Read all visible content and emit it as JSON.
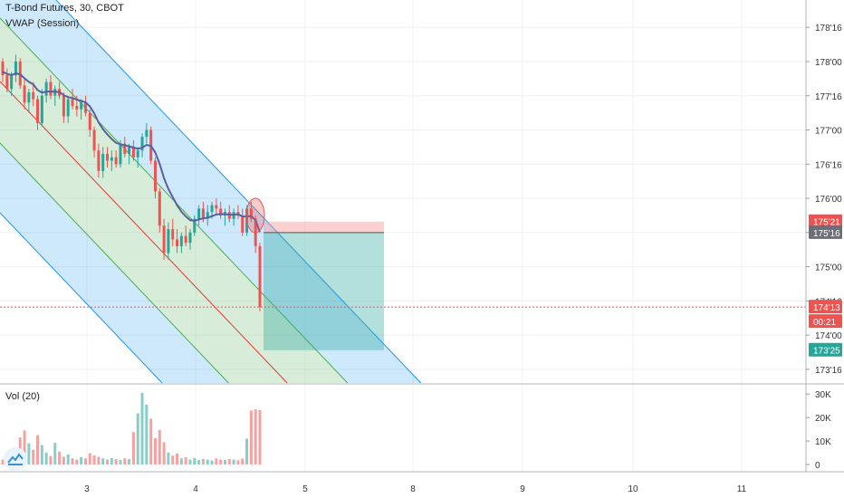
{
  "header": {
    "symbol_line": "T-Bond Futures, 30, CBOT",
    "indicator": "VWAP (Session)"
  },
  "volume_pane": {
    "label": "Vol (20)"
  },
  "colors": {
    "bull": "#26a69a",
    "bear": "#ef5350",
    "vwap": "#5b5f9c",
    "channel_outer": "#2196f3",
    "channel_inner": "#4caf50",
    "regression_line": "#e53935",
    "stop_zone": "#f4b6b6",
    "target_zone": "#8dd3c7",
    "last_price_line": "#ef5350"
  },
  "icons": [
    "tradingview-logo-icon"
  ],
  "chart_data": [
    {
      "type": "candlestick",
      "title": "T-Bond Futures, 30, CBOT",
      "xlabel": "",
      "ylabel": "",
      "x_ticks": [
        "3",
        "4",
        "5",
        "8",
        "9",
        "10",
        "11"
      ],
      "y_ticks": [
        "173'16",
        "174'00",
        "174'16",
        "175'00",
        "175'16",
        "176'00",
        "176'16",
        "177'00",
        "177'16",
        "178'00",
        "178'16"
      ],
      "ylim": [
        173.3,
        178.9
      ],
      "price_labels": [
        {
          "text": "175'21",
          "value": 175.66,
          "role": "stop-level"
        },
        {
          "text": "175'16",
          "value": 175.5,
          "role": "entry-level"
        },
        {
          "text": "174'13",
          "value": 174.41,
          "role": "last-price"
        },
        {
          "text": "00:21",
          "role": "bar-countdown"
        },
        {
          "text": "173'25",
          "value": 173.78,
          "role": "target-level"
        }
      ],
      "series": [
        {
          "name": "VWAP (Session)",
          "type": "line"
        }
      ],
      "candles": [
        [
          178.0,
          178.05,
          177.7,
          177.8
        ],
        [
          177.8,
          177.9,
          177.55,
          177.6
        ],
        [
          177.6,
          177.85,
          177.5,
          177.8
        ],
        [
          177.8,
          178.1,
          177.7,
          178.0
        ],
        [
          178.0,
          178.05,
          177.6,
          177.65
        ],
        [
          177.65,
          177.75,
          177.3,
          177.4
        ],
        [
          177.4,
          177.6,
          177.25,
          177.55
        ],
        [
          177.55,
          177.7,
          177.35,
          177.45
        ],
        [
          177.45,
          177.5,
          177.0,
          177.1
        ],
        [
          177.1,
          177.6,
          177.05,
          177.5
        ],
        [
          177.5,
          177.75,
          177.4,
          177.7
        ],
        [
          177.7,
          177.8,
          177.45,
          177.5
        ],
        [
          177.5,
          177.65,
          177.35,
          177.6
        ],
        [
          177.6,
          177.7,
          177.45,
          177.5
        ],
        [
          177.5,
          177.55,
          177.1,
          177.2
        ],
        [
          177.2,
          177.5,
          177.1,
          177.45
        ],
        [
          177.45,
          177.6,
          177.3,
          177.35
        ],
        [
          177.35,
          177.5,
          177.2,
          177.3
        ],
        [
          177.3,
          177.45,
          177.15,
          177.4
        ],
        [
          177.4,
          177.5,
          177.2,
          177.25
        ],
        [
          177.25,
          177.3,
          176.9,
          177.0
        ],
        [
          177.0,
          177.05,
          176.6,
          176.7
        ],
        [
          176.7,
          176.8,
          176.3,
          176.4
        ],
        [
          176.4,
          176.75,
          176.3,
          176.65
        ],
        [
          176.65,
          176.75,
          176.45,
          176.55
        ],
        [
          176.55,
          176.7,
          176.4,
          176.6
        ],
        [
          176.6,
          176.7,
          176.45,
          176.5
        ],
        [
          176.5,
          176.85,
          176.45,
          176.8
        ],
        [
          176.8,
          176.9,
          176.6,
          176.65
        ],
        [
          176.65,
          176.8,
          176.5,
          176.75
        ],
        [
          176.75,
          176.85,
          176.55,
          176.6
        ],
        [
          176.6,
          176.75,
          176.45,
          176.7
        ],
        [
          176.7,
          176.95,
          176.6,
          176.9
        ],
        [
          176.9,
          177.1,
          176.8,
          177.0
        ],
        [
          177.0,
          177.05,
          176.5,
          176.55
        ],
        [
          176.55,
          176.6,
          176.0,
          176.1
        ],
        [
          176.1,
          176.15,
          175.5,
          175.6
        ],
        [
          175.6,
          175.7,
          175.1,
          175.2
        ],
        [
          175.2,
          175.65,
          175.1,
          175.55
        ],
        [
          175.55,
          175.7,
          175.3,
          175.4
        ],
        [
          175.4,
          175.55,
          175.2,
          175.3
        ],
        [
          175.3,
          175.5,
          175.2,
          175.45
        ],
        [
          175.45,
          175.6,
          175.3,
          175.35
        ],
        [
          175.35,
          175.55,
          175.25,
          175.5
        ],
        [
          175.5,
          175.75,
          175.45,
          175.7
        ],
        [
          175.7,
          175.9,
          175.6,
          175.85
        ],
        [
          175.85,
          175.95,
          175.65,
          175.7
        ],
        [
          175.7,
          175.9,
          175.6,
          175.8
        ],
        [
          175.8,
          175.95,
          175.7,
          175.9
        ],
        [
          175.9,
          176.0,
          175.75,
          175.85
        ],
        [
          175.85,
          175.95,
          175.7,
          175.75
        ],
        [
          175.75,
          175.85,
          175.6,
          175.8
        ],
        [
          175.8,
          175.9,
          175.65,
          175.7
        ],
        [
          175.7,
          175.85,
          175.6,
          175.8
        ],
        [
          175.8,
          175.9,
          175.7,
          175.75
        ],
        [
          175.75,
          175.85,
          175.45,
          175.5
        ],
        [
          175.5,
          175.9,
          175.45,
          175.85
        ],
        [
          175.85,
          175.95,
          175.65,
          175.7
        ],
        [
          175.7,
          175.75,
          175.2,
          175.3
        ],
        [
          175.3,
          175.35,
          174.35,
          174.41
        ]
      ],
      "volume_yticks": [
        "30K",
        "20K",
        "10K",
        "0"
      ],
      "volume_ylim": [
        0,
        32000
      ],
      "volume": [
        2100,
        3200,
        4100,
        3600,
        11500,
        14500,
        9000,
        6200,
        12500,
        8300,
        5100,
        3600,
        9200,
        5500,
        3300,
        4300,
        2600,
        2100,
        3100,
        2600,
        4800,
        3900,
        3300,
        2600,
        2100,
        2700,
        2300,
        1900,
        2600,
        2300,
        13800,
        21800,
        30500,
        25500,
        19500,
        11200,
        14700,
        9500,
        5100,
        3800,
        4700,
        2600,
        3100,
        2100,
        2800,
        1900,
        2300,
        2100,
        1700,
        2600,
        2100,
        1900,
        2300,
        2100,
        1800,
        2500,
        11000,
        23000,
        23500,
        23200
      ]
    }
  ]
}
